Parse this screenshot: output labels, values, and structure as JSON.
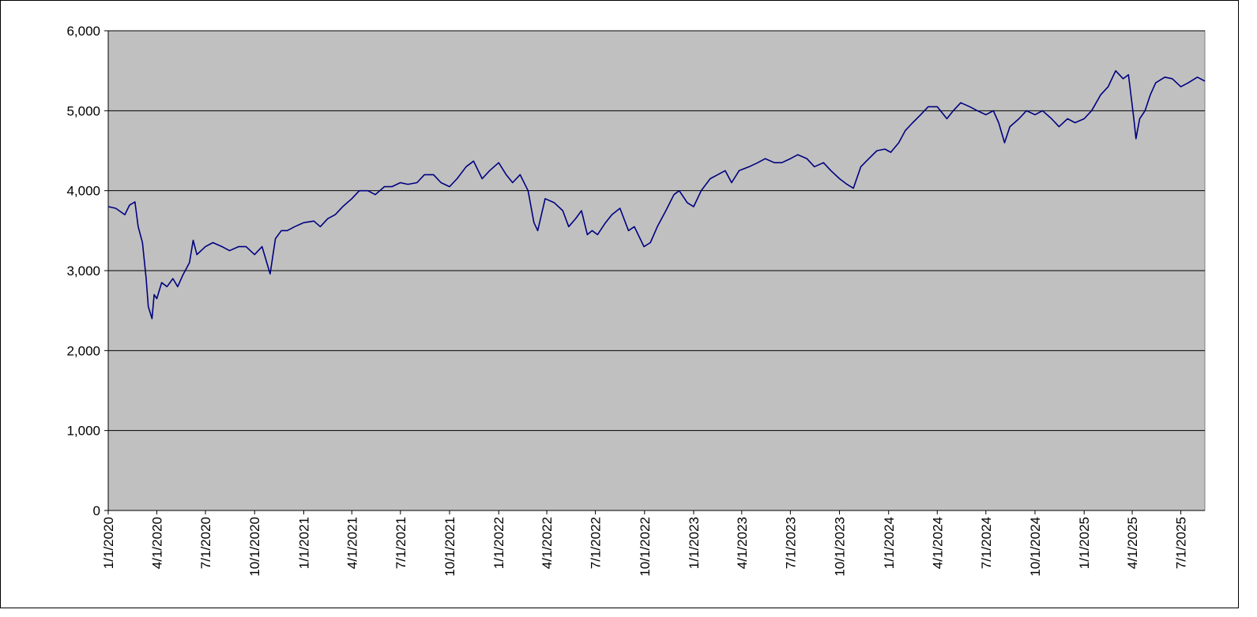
{
  "chart_data": {
    "type": "line",
    "title": "",
    "xlabel": "",
    "ylabel": "",
    "ylim": [
      0,
      6000
    ],
    "xlim": [
      "2020-01-01",
      "2025-08-15"
    ],
    "y_ticks": [
      0,
      1000,
      2000,
      3000,
      4000,
      5000,
      6000
    ],
    "y_tick_labels": [
      "0",
      "1,000",
      "2,000",
      "3,000",
      "4,000",
      "5,000",
      "6,000"
    ],
    "x_ticks": [
      "2020-01-01",
      "2020-04-01",
      "2020-07-01",
      "2020-10-01",
      "2021-01-01",
      "2021-04-01",
      "2021-07-01",
      "2021-10-01",
      "2022-01-01",
      "2022-04-01",
      "2022-07-01",
      "2022-10-01",
      "2023-01-01",
      "2023-04-01",
      "2023-07-01",
      "2023-10-01",
      "2024-01-01",
      "2024-04-01",
      "2024-07-01",
      "2024-10-01",
      "2025-01-01",
      "2025-04-01",
      "2025-07-01"
    ],
    "x_tick_labels": [
      "1/1/2020",
      "4/1/2020",
      "7/1/2020",
      "10/1/2020",
      "1/1/2021",
      "4/1/2021",
      "7/1/2021",
      "10/1/2021",
      "1/1/2022",
      "4/1/2022",
      "7/1/2022",
      "10/1/2022",
      "1/1/2023",
      "4/1/2023",
      "7/1/2023",
      "10/1/2023",
      "1/1/2024",
      "4/1/2024",
      "7/1/2024",
      "10/1/2024",
      "1/1/2025",
      "4/1/2025",
      "7/1/2025"
    ],
    "grid": "horizontal",
    "legend": "none",
    "background_color": "#c0c0c0",
    "gridline_color": "#000000",
    "series": [
      {
        "color": "#000080",
        "points": [
          [
            "2020-01-01",
            3800
          ],
          [
            "2020-01-15",
            3780
          ],
          [
            "2020-02-01",
            3700
          ],
          [
            "2020-02-10",
            3820
          ],
          [
            "2020-02-20",
            3860
          ],
          [
            "2020-02-26",
            3550
          ],
          [
            "2020-03-05",
            3350
          ],
          [
            "2020-03-12",
            2900
          ],
          [
            "2020-03-16",
            2550
          ],
          [
            "2020-03-23",
            2400
          ],
          [
            "2020-03-27",
            2700
          ],
          [
            "2020-04-01",
            2650
          ],
          [
            "2020-04-10",
            2850
          ],
          [
            "2020-04-20",
            2800
          ],
          [
            "2020-05-01",
            2900
          ],
          [
            "2020-05-10",
            2800
          ],
          [
            "2020-05-20",
            2950
          ],
          [
            "2020-06-01",
            3100
          ],
          [
            "2020-06-08",
            3380
          ],
          [
            "2020-06-15",
            3200
          ],
          [
            "2020-07-01",
            3300
          ],
          [
            "2020-07-15",
            3350
          ],
          [
            "2020-08-01",
            3300
          ],
          [
            "2020-08-15",
            3250
          ],
          [
            "2020-09-01",
            3300
          ],
          [
            "2020-09-15",
            3300
          ],
          [
            "2020-10-01",
            3200
          ],
          [
            "2020-10-15",
            3300
          ],
          [
            "2020-10-30",
            2960
          ],
          [
            "2020-11-09",
            3400
          ],
          [
            "2020-11-20",
            3500
          ],
          [
            "2020-12-01",
            3500
          ],
          [
            "2020-12-15",
            3550
          ],
          [
            "2021-01-01",
            3600
          ],
          [
            "2021-01-20",
            3620
          ],
          [
            "2021-02-01",
            3550
          ],
          [
            "2021-02-15",
            3650
          ],
          [
            "2021-03-01",
            3700
          ],
          [
            "2021-03-15",
            3800
          ],
          [
            "2021-04-01",
            3900
          ],
          [
            "2021-04-15",
            4000
          ],
          [
            "2021-05-01",
            4000
          ],
          [
            "2021-05-15",
            3950
          ],
          [
            "2021-06-01",
            4050
          ],
          [
            "2021-06-15",
            4050
          ],
          [
            "2021-07-01",
            4100
          ],
          [
            "2021-07-15",
            4080
          ],
          [
            "2021-08-01",
            4100
          ],
          [
            "2021-08-15",
            4200
          ],
          [
            "2021-09-01",
            4200
          ],
          [
            "2021-09-15",
            4100
          ],
          [
            "2021-10-01",
            4050
          ],
          [
            "2021-10-15",
            4150
          ],
          [
            "2021-11-01",
            4300
          ],
          [
            "2021-11-15",
            4370
          ],
          [
            "2021-12-01",
            4150
          ],
          [
            "2021-12-15",
            4250
          ],
          [
            "2022-01-01",
            4350
          ],
          [
            "2022-01-15",
            4200
          ],
          [
            "2022-01-27",
            4100
          ],
          [
            "2022-02-10",
            4200
          ],
          [
            "2022-02-25",
            4000
          ],
          [
            "2022-03-08",
            3600
          ],
          [
            "2022-03-15",
            3500
          ],
          [
            "2022-03-29",
            3900
          ],
          [
            "2022-04-15",
            3850
          ],
          [
            "2022-05-01",
            3750
          ],
          [
            "2022-05-12",
            3550
          ],
          [
            "2022-05-25",
            3650
          ],
          [
            "2022-06-05",
            3750
          ],
          [
            "2022-06-16",
            3450
          ],
          [
            "2022-06-25",
            3500
          ],
          [
            "2022-07-05",
            3450
          ],
          [
            "2022-07-20",
            3600
          ],
          [
            "2022-08-01",
            3700
          ],
          [
            "2022-08-16",
            3780
          ],
          [
            "2022-09-01",
            3500
          ],
          [
            "2022-09-12",
            3550
          ],
          [
            "2022-09-30",
            3300
          ],
          [
            "2022-10-12",
            3350
          ],
          [
            "2022-10-25",
            3550
          ],
          [
            "2022-11-10",
            3750
          ],
          [
            "2022-11-25",
            3950
          ],
          [
            "2022-12-05",
            4000
          ],
          [
            "2022-12-20",
            3850
          ],
          [
            "2023-01-01",
            3800
          ],
          [
            "2023-01-15",
            4000
          ],
          [
            "2023-02-01",
            4150
          ],
          [
            "2023-02-15",
            4200
          ],
          [
            "2023-03-01",
            4250
          ],
          [
            "2023-03-13",
            4100
          ],
          [
            "2023-03-27",
            4250
          ],
          [
            "2023-04-15",
            4300
          ],
          [
            "2023-05-01",
            4350
          ],
          [
            "2023-05-15",
            4400
          ],
          [
            "2023-06-01",
            4350
          ],
          [
            "2023-06-15",
            4350
          ],
          [
            "2023-07-01",
            4400
          ],
          [
            "2023-07-15",
            4450
          ],
          [
            "2023-08-01",
            4400
          ],
          [
            "2023-08-15",
            4300
          ],
          [
            "2023-09-01",
            4350
          ],
          [
            "2023-09-15",
            4250
          ],
          [
            "2023-10-01",
            4150
          ],
          [
            "2023-10-15",
            4080
          ],
          [
            "2023-10-27",
            4030
          ],
          [
            "2023-11-10",
            4300
          ],
          [
            "2023-11-25",
            4400
          ],
          [
            "2023-12-10",
            4500
          ],
          [
            "2023-12-25",
            4520
          ],
          [
            "2024-01-05",
            4480
          ],
          [
            "2024-01-20",
            4600
          ],
          [
            "2024-02-01",
            4750
          ],
          [
            "2024-02-15",
            4850
          ],
          [
            "2024-03-01",
            4950
          ],
          [
            "2024-03-15",
            5050
          ],
          [
            "2024-04-01",
            5050
          ],
          [
            "2024-04-19",
            4900
          ],
          [
            "2024-05-01",
            5000
          ],
          [
            "2024-05-15",
            5100
          ],
          [
            "2024-06-01",
            5050
          ],
          [
            "2024-06-15",
            5000
          ],
          [
            "2024-07-01",
            4950
          ],
          [
            "2024-07-15",
            5000
          ],
          [
            "2024-07-25",
            4850
          ],
          [
            "2024-08-05",
            4600
          ],
          [
            "2024-08-15",
            4800
          ],
          [
            "2024-09-01",
            4900
          ],
          [
            "2024-09-15",
            5000
          ],
          [
            "2024-10-01",
            4950
          ],
          [
            "2024-10-15",
            5000
          ],
          [
            "2024-11-01",
            4900
          ],
          [
            "2024-11-15",
            4800
          ],
          [
            "2024-12-01",
            4900
          ],
          [
            "2024-12-15",
            4850
          ],
          [
            "2025-01-01",
            4900
          ],
          [
            "2025-01-15",
            5000
          ],
          [
            "2025-02-01",
            5200
          ],
          [
            "2025-02-15",
            5300
          ],
          [
            "2025-03-01",
            5500
          ],
          [
            "2025-03-15",
            5400
          ],
          [
            "2025-03-25",
            5450
          ],
          [
            "2025-04-04",
            4900
          ],
          [
            "2025-04-08",
            4650
          ],
          [
            "2025-04-15",
            4900
          ],
          [
            "2025-04-25",
            5000
          ],
          [
            "2025-05-05",
            5200
          ],
          [
            "2025-05-15",
            5350
          ],
          [
            "2025-06-01",
            5420
          ],
          [
            "2025-06-15",
            5400
          ],
          [
            "2025-07-01",
            5300
          ],
          [
            "2025-07-15",
            5350
          ],
          [
            "2025-08-01",
            5420
          ],
          [
            "2025-08-15",
            5370
          ]
        ]
      }
    ]
  }
}
